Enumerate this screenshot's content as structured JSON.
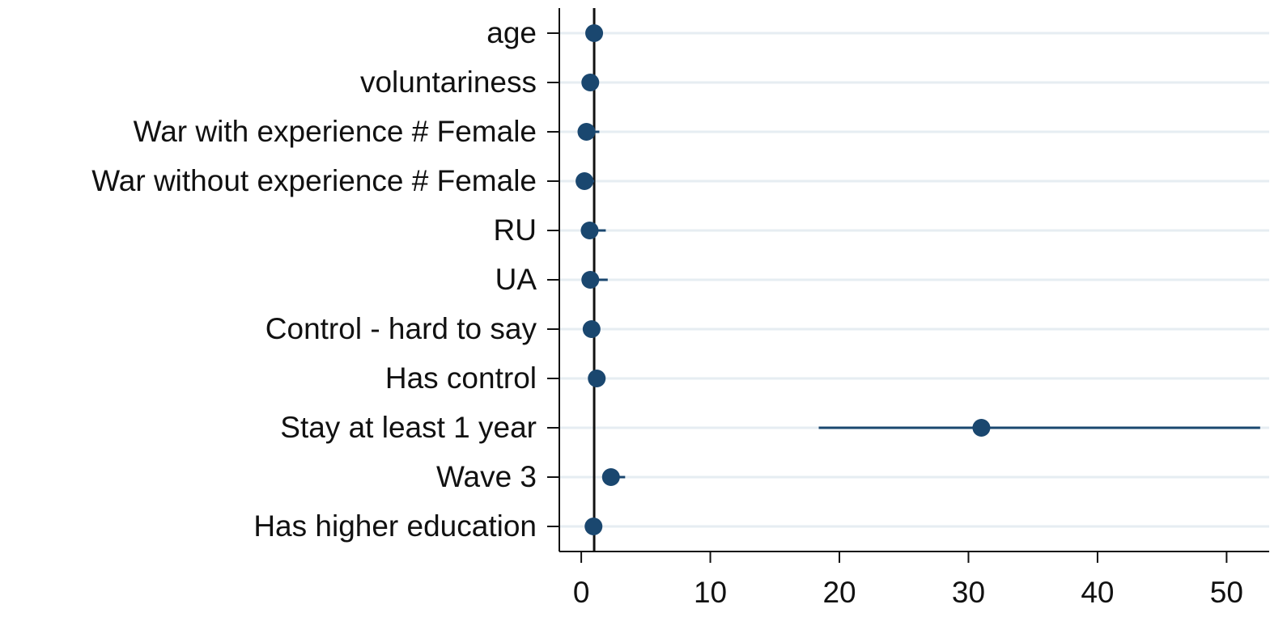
{
  "chart_data": {
    "type": "coefplot",
    "categories": [
      "age",
      "voluntariness",
      "War with experience # Female",
      "War without experience # Female",
      "RU",
      "UA",
      "Control - hard to say",
      "Has control",
      "Stay at least 1 year",
      "Wave 3",
      "Has higher education"
    ],
    "series": [
      {
        "color": "#1a476f",
        "values": [
          1.0,
          0.7,
          0.4,
          0.25,
          0.65,
          0.7,
          0.8,
          1.2,
          31.0,
          2.3,
          0.95
        ],
        "lower": [
          0.9,
          0.5,
          0.1,
          0.05,
          0.3,
          0.3,
          0.6,
          1.0,
          18.4,
          1.7,
          0.8
        ],
        "upper": [
          1.1,
          0.95,
          1.4,
          1.0,
          1.9,
          2.05,
          1.05,
          1.45,
          52.6,
          3.4,
          1.15
        ]
      }
    ],
    "reference_line": 1,
    "xlim": [
      -1.7,
      53.3
    ],
    "xticks": [
      0,
      10,
      20,
      30,
      40,
      50
    ],
    "grid": true
  }
}
